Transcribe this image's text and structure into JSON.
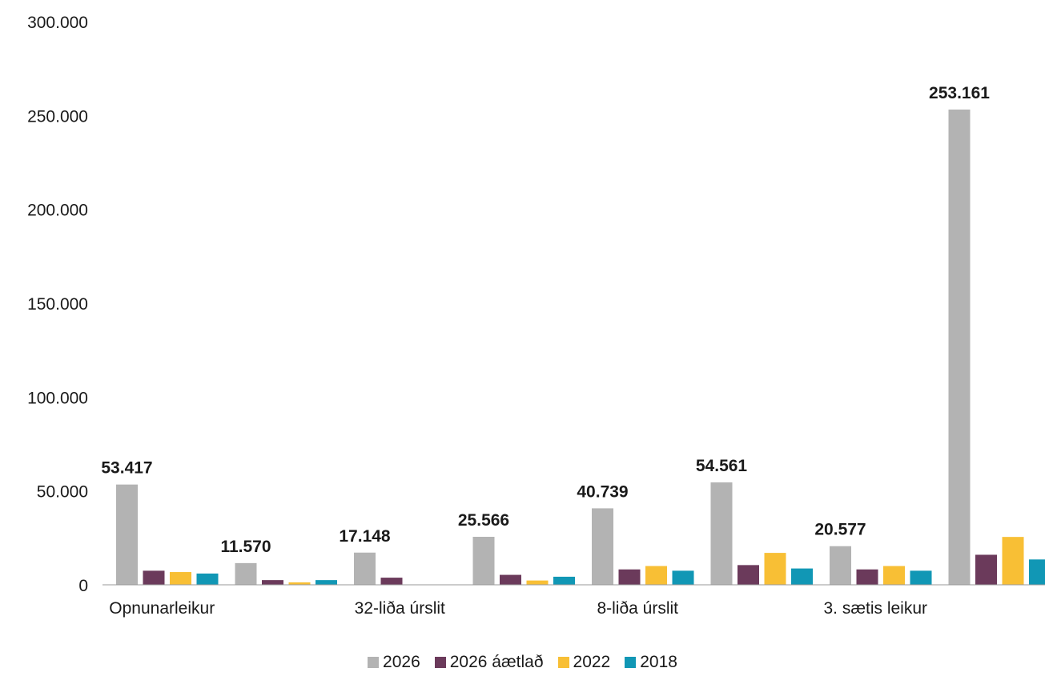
{
  "chart_data": {
    "type": "bar",
    "title": "",
    "xlabel": "",
    "ylabel": "",
    "ylim": [
      0,
      300000
    ],
    "yticks": [
      0,
      50000,
      100000,
      150000,
      200000,
      250000,
      300000
    ],
    "ytick_labels": [
      "0",
      "50.000",
      "100.000",
      "150.000",
      "200.000",
      "250.000",
      "300.000"
    ],
    "categories": [
      "Opnunarleikur",
      "",
      "32-liða úrslit",
      "",
      "8-liða úrslit",
      "",
      "3. sætis leikur",
      ""
    ],
    "series": [
      {
        "name": "2026",
        "color": "#b3b3b3",
        "values": [
          53417,
          11570,
          17148,
          25566,
          40739,
          54561,
          20577,
          253161
        ]
      },
      {
        "name": "2026 áætlað",
        "color": "#6b3a5b",
        "values": [
          7500,
          2500,
          3800,
          5300,
          8200,
          10500,
          8200,
          16000
        ]
      },
      {
        "name": "2022",
        "color": "#f8bf35",
        "values": [
          6800,
          1300,
          0,
          2300,
          10000,
          17000,
          10000,
          25500
        ]
      },
      {
        "name": "2018",
        "color": "#1197b5",
        "values": [
          6000,
          2500,
          0,
          4300,
          7500,
          8700,
          7500,
          13500
        ]
      }
    ],
    "data_labels": [
      "53.417",
      "11.570",
      "17.148",
      "25.566",
      "40.739",
      "54.561",
      "20.577",
      "253.161"
    ],
    "legend_position": "bottom",
    "grid": false
  }
}
